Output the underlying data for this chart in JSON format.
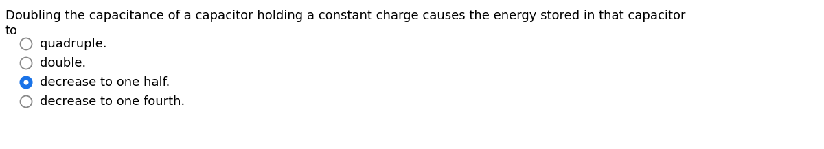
{
  "question_line1": "Doubling the capacitance of a capacitor holding a constant charge causes the energy stored in that capacitor",
  "question_line2": "to",
  "options": [
    {
      "text": "quadruple.",
      "selected": false
    },
    {
      "text": "double.",
      "selected": false
    },
    {
      "text": "decrease to one half.",
      "selected": true
    },
    {
      "text": "decrease to one fourth.",
      "selected": false
    }
  ],
  "bg_color": "#ffffff",
  "text_color": "#000000",
  "circle_color_empty": "#ffffff",
  "circle_edge_color": "#888888",
  "circle_selected_fill": "#1a73e8",
  "circle_selected_edge": "#1a73e8",
  "circle_selected_inner": "#ffffff",
  "font_size_question": 13.0,
  "font_size_options": 13.0,
  "fig_width": 12.0,
  "fig_height": 2.17
}
